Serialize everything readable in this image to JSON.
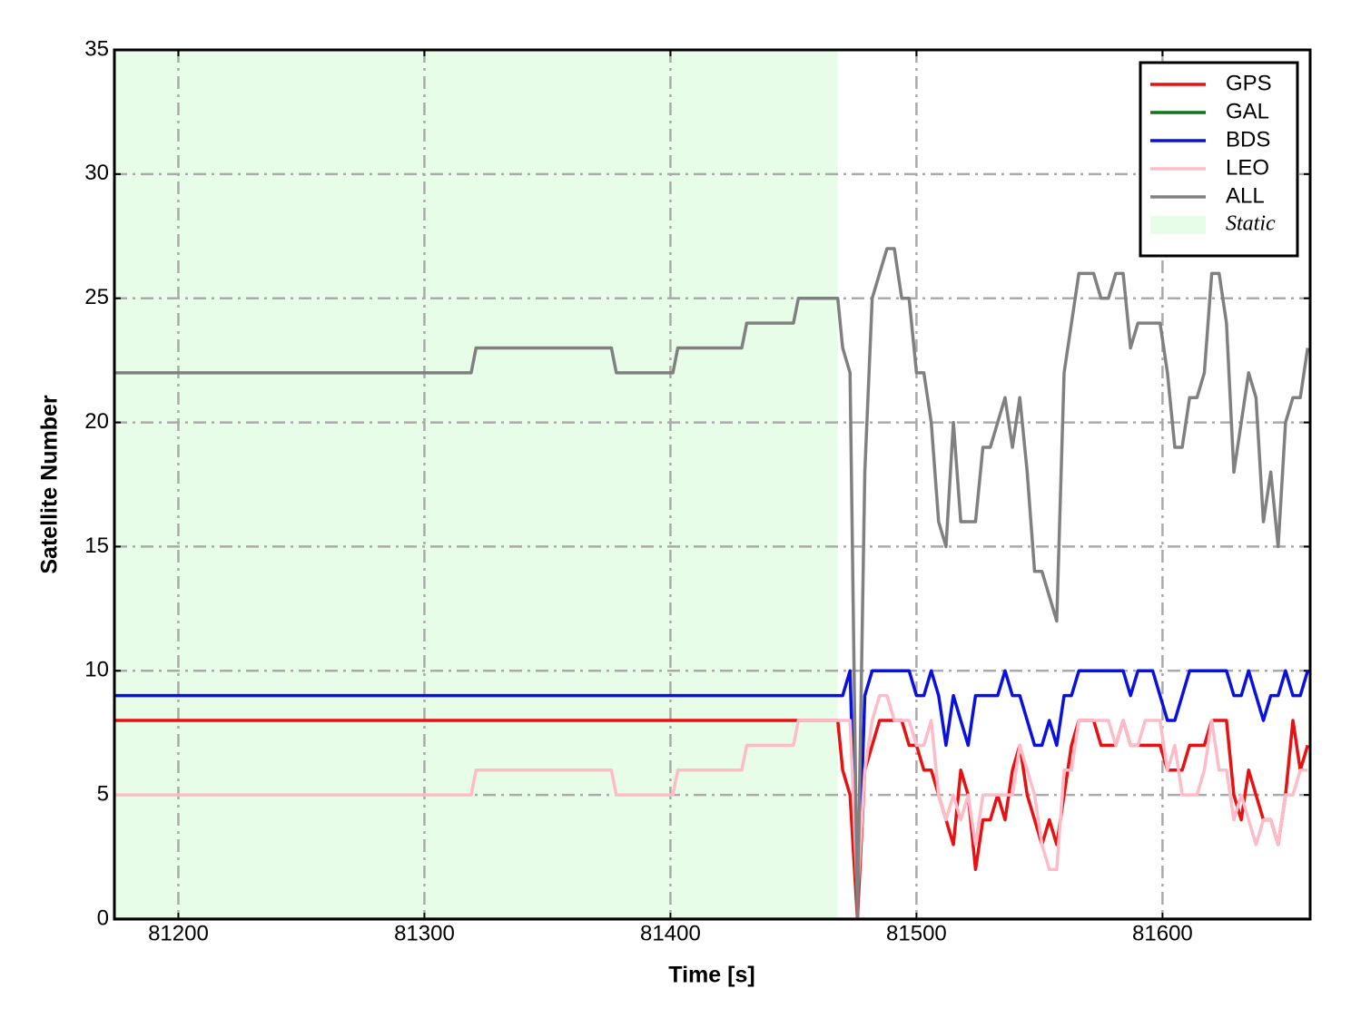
{
  "chart_data": {
    "type": "line",
    "xlabel": "Time [s]",
    "ylabel": "Satellite Number",
    "xlim": [
      81174,
      81660
    ],
    "ylim": [
      0,
      35
    ],
    "xticks": [
      81200,
      81300,
      81400,
      81500,
      81600
    ],
    "yticks": [
      0,
      5,
      10,
      15,
      20,
      25,
      30,
      35
    ],
    "grid": true,
    "legend": "upper right",
    "spans": [
      {
        "name": "Static",
        "color": "#e8fde8",
        "xlim": [
          81174,
          81468
        ]
      }
    ],
    "x": [
      81174,
      81319,
      81321,
      81376,
      81378,
      81401,
      81403,
      81429,
      81431,
      81450,
      81452,
      81468,
      81470,
      81473,
      81476,
      81479,
      81482,
      81485,
      81488,
      81491,
      81494,
      81497,
      81500,
      81503,
      81506,
      81509,
      81512,
      81515,
      81518,
      81521,
      81524,
      81527,
      81530,
      81533,
      81536,
      81539,
      81542,
      81545,
      81548,
      81551,
      81554,
      81557,
      81560,
      81563,
      81566,
      81569,
      81572,
      81575,
      81578,
      81581,
      81584,
      81587,
      81590,
      81593,
      81596,
      81599,
      81602,
      81605,
      81608,
      81611,
      81614,
      81617,
      81620,
      81623,
      81626,
      81629,
      81632,
      81635,
      81638,
      81641,
      81644,
      81647,
      81650,
      81653,
      81656,
      81659
    ],
    "series": [
      {
        "name": "GPS",
        "color": "#e81010",
        "values": [
          8,
          8,
          8,
          8,
          8,
          8,
          8,
          8,
          8,
          8,
          8,
          8,
          6,
          5,
          0,
          6,
          7,
          8,
          8,
          8,
          8,
          7,
          7,
          6,
          6,
          5,
          4,
          3,
          6,
          5,
          2,
          4,
          4,
          5,
          4,
          6,
          7,
          5,
          4,
          3,
          4,
          3,
          5,
          7,
          8,
          8,
          8,
          7,
          7,
          7,
          8,
          7,
          7,
          7,
          7,
          7,
          6,
          6,
          6,
          7,
          7,
          7,
          8,
          8,
          8,
          5,
          4,
          6,
          5,
          4,
          4,
          3,
          5,
          8,
          6,
          7
        ]
      },
      {
        "name": "GAL",
        "color": "#117711",
        "values": [
          0,
          0,
          0,
          0,
          0,
          0,
          0,
          0,
          0,
          0,
          0,
          0,
          0,
          0,
          0,
          0,
          0,
          0,
          0,
          0,
          0,
          0,
          0,
          0,
          0,
          0,
          0,
          0,
          0,
          0,
          0,
          0,
          0,
          0,
          0,
          0,
          0,
          0,
          0,
          0,
          0,
          0,
          0,
          0,
          0,
          0,
          0,
          0,
          0,
          0,
          0,
          0,
          0,
          0,
          0,
          0,
          0,
          0,
          0,
          0,
          0,
          0,
          0,
          0,
          0,
          0,
          0,
          0,
          0,
          0,
          0,
          0,
          0,
          0,
          0,
          0
        ]
      },
      {
        "name": "BDS",
        "color": "#0a10dd",
        "values": [
          9,
          9,
          9,
          9,
          9,
          9,
          9,
          9,
          9,
          9,
          9,
          9,
          9,
          10,
          0,
          9,
          10,
          10,
          10,
          10,
          10,
          10,
          9,
          9,
          10,
          9,
          7,
          9,
          8,
          7,
          9,
          9,
          9,
          9,
          10,
          9,
          9,
          8,
          7,
          7,
          8,
          7,
          9,
          9,
          10,
          10,
          10,
          10,
          10,
          10,
          10,
          9,
          10,
          10,
          10,
          9,
          8,
          8,
          9,
          10,
          10,
          10,
          10,
          10,
          10,
          9,
          9,
          10,
          9,
          8,
          9,
          9,
          10,
          9,
          9,
          10
        ]
      },
      {
        "name": "LEO",
        "color": "#ffbcc8",
        "values": [
          5,
          5,
          6,
          6,
          5,
          5,
          6,
          6,
          7,
          7,
          8,
          8,
          8,
          8,
          1,
          6,
          8,
          9,
          9,
          8,
          8,
          8,
          7,
          7,
          8,
          5,
          4,
          5,
          4,
          5,
          3,
          5,
          5,
          5,
          5,
          5,
          7,
          6,
          5,
          3,
          2,
          2,
          6,
          6,
          8,
          8,
          8,
          8,
          8,
          7,
          8,
          7,
          7,
          8,
          8,
          8,
          6,
          7,
          5,
          5,
          5,
          6,
          8,
          6,
          6,
          4,
          5,
          4,
          3,
          4,
          4,
          3,
          5,
          5,
          6,
          6
        ]
      },
      {
        "name": "ALL",
        "color": "#808080",
        "values": [
          22,
          22,
          23,
          23,
          22,
          22,
          23,
          23,
          24,
          24,
          25,
          25,
          23,
          22,
          0,
          18,
          25,
          26,
          27,
          27,
          25,
          25,
          22,
          22,
          20,
          16,
          15,
          20,
          16,
          16,
          16,
          19,
          19,
          20,
          21,
          19,
          21,
          18,
          14,
          14,
          13,
          12,
          22,
          24,
          26,
          26,
          26,
          25,
          25,
          26,
          26,
          23,
          24,
          24,
          24,
          24,
          22,
          19,
          19,
          21,
          21,
          22,
          26,
          26,
          24,
          18,
          20,
          22,
          21,
          16,
          18,
          15,
          20,
          21,
          21,
          23
        ]
      }
    ]
  }
}
